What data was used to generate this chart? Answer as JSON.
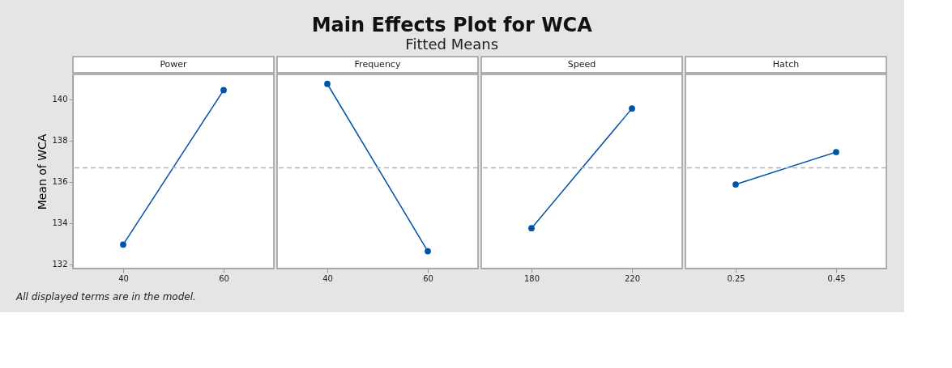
{
  "chart_data": [
    {
      "type": "other",
      "title": "Main Effects Plot for WCA",
      "subtitle": "Fitted Means"
    },
    {
      "type": "line",
      "xlabel": "Power",
      "ylabel": "Mean of WCA",
      "annotations": [
        "All displayed terms are in the model."
      ],
      "categories": [
        "40",
        "60"
      ],
      "series": [
        {
          "color": "#0054a6",
          "values": [
            132.96,
            140.44
          ]
        }
      ],
      "ylim": [
        131.8,
        141.2
      ],
      "yticks": [
        132,
        134,
        136,
        138,
        140
      ],
      "ref_lines": [
        {
          "axis": "y",
          "value": 136.68,
          "color": "#b4b4b4",
          "line_style": "dashed"
        }
      ],
      "marker": "circle",
      "grid": false
    },
    {
      "type": "line",
      "xlabel": "Frequency",
      "categories": [
        "40",
        "60"
      ],
      "series": [
        {
          "color": "#0054a6",
          "values": [
            140.74,
            132.64
          ]
        }
      ],
      "ylim": [
        131.8,
        141.2
      ],
      "tick_labels": "x",
      "ref_lines": [
        {
          "axis": "y",
          "value": 136.68,
          "color": "#b4b4b4",
          "line_style": "dashed"
        }
      ],
      "marker": "circle",
      "grid": false
    },
    {
      "type": "line",
      "xlabel": "Speed",
      "categories": [
        "180",
        "220"
      ],
      "series": [
        {
          "color": "#0054a6",
          "values": [
            133.75,
            139.55
          ]
        }
      ],
      "ylim": [
        131.8,
        141.2
      ],
      "tick_labels": "x",
      "ref_lines": [
        {
          "axis": "y",
          "value": 136.68,
          "color": "#b4b4b4",
          "line_style": "dashed"
        }
      ],
      "marker": "circle",
      "grid": false
    },
    {
      "type": "line",
      "xlabel": "Hatch",
      "categories": [
        "0.25",
        "0.45"
      ],
      "series": [
        {
          "color": "#0054a6",
          "values": [
            135.87,
            137.44
          ]
        }
      ],
      "ylim": [
        131.8,
        141.2
      ],
      "tick_labels": "x",
      "ref_lines": [
        {
          "axis": "y",
          "value": 136.68,
          "color": "#b4b4b4",
          "line_style": "dashed"
        }
      ],
      "marker": "circle",
      "grid": false
    }
  ]
}
